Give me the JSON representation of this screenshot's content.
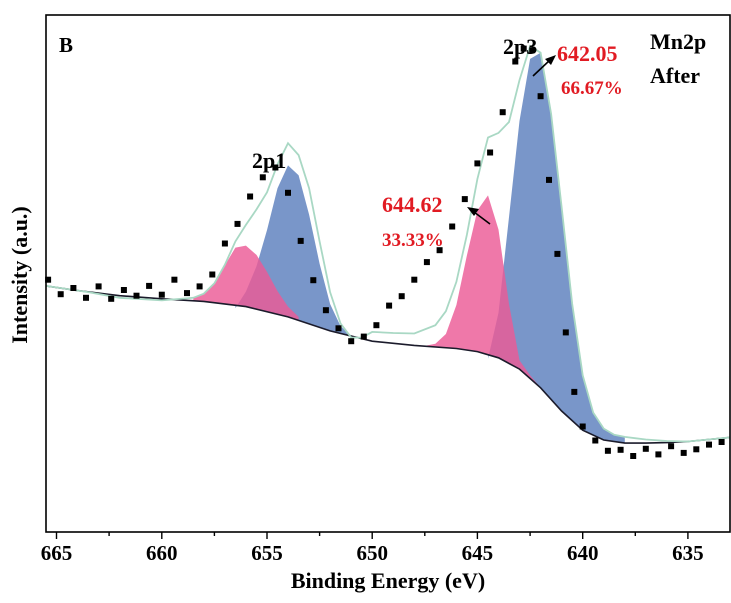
{
  "chart_data": {
    "type": "line",
    "panel_label": "B",
    "xlabel": "Binding Energy (eV)",
    "ylabel": "Intensity (a.u.)",
    "xlim": [
      665.5,
      633
    ],
    "ylim": [
      0,
      100
    ],
    "x_ticks": [
      665,
      660,
      655,
      650,
      645,
      640,
      635
    ],
    "grid": false,
    "legend": "none",
    "colors": {
      "peak_low_be": "#5c7fbd",
      "peak_high_be": "#eb5a96",
      "envelope": "#a9d8c4",
      "background": "#1b1b2b",
      "raw_data": "#000000",
      "annotation": "#e11b23"
    },
    "annotations": {
      "species": "Mn2p",
      "state": "After",
      "peak_2p1": "2p1",
      "peak_2p3": "2p3",
      "p1_energy": "642.05",
      "p1_percent": "66.67%",
      "p2_energy": "644.62",
      "p2_percent": "33.33%"
    },
    "series": [
      {
        "role": "raw-data",
        "x": [
          665.4,
          664.8,
          664.2,
          663.6,
          663.0,
          662.4,
          661.8,
          661.2,
          660.6,
          660.0,
          659.4,
          658.8,
          658.2,
          657.6,
          657.0,
          656.4,
          655.8,
          655.2,
          654.6,
          654.0,
          653.4,
          652.8,
          652.2,
          651.6,
          651.0,
          650.4,
          649.8,
          649.2,
          648.6,
          648.0,
          647.4,
          646.8,
          646.2,
          645.6,
          645.0,
          644.4,
          643.8,
          643.2,
          642.8,
          642.4,
          642.0,
          641.6,
          641.2,
          640.8,
          640.4,
          640.0,
          639.4,
          638.8,
          638.2,
          637.6,
          637.0,
          636.4,
          635.8,
          635.2,
          634.6,
          634.0,
          633.4
        ],
        "y": [
          48.8,
          46.0,
          47.2,
          45.3,
          47.5,
          45.1,
          46.8,
          45.7,
          47.6,
          45.9,
          48.8,
          46.2,
          47.5,
          49.8,
          55.8,
          59.6,
          64.9,
          68.6,
          70.5,
          65.6,
          56.3,
          48.7,
          42.9,
          39.4,
          36.9,
          37.8,
          40.0,
          43.8,
          45.6,
          48.8,
          52.2,
          54.5,
          59.1,
          64.4,
          71.3,
          73.4,
          81.2,
          91.0,
          93.5,
          93.2,
          84.3,
          68.1,
          53.8,
          38.6,
          27.1,
          20.4,
          17.7,
          15.7,
          15.9,
          14.7,
          16.1,
          15.0,
          16.6,
          15.3,
          16.0,
          16.9,
          17.4
        ]
      },
      {
        "role": "envelope",
        "x": [
          665.5,
          663.5,
          662.0,
          660.0,
          658.5,
          658.0,
          657.5,
          657.0,
          656.5,
          656.0,
          655.5,
          655.0,
          654.5,
          654.0,
          653.5,
          653.0,
          652.5,
          652.0,
          651.5,
          651.0,
          650.5,
          650.0,
          649.0,
          648.0,
          647.0,
          646.5,
          646.0,
          645.5,
          645.0,
          644.5,
          644.0,
          643.5,
          643.0,
          642.5,
          642.0,
          641.5,
          641.0,
          640.5,
          640.0,
          639.5,
          639.0,
          638.5,
          638.0,
          637.0,
          636.0,
          635.0,
          633.0
        ],
        "y": [
          47.6,
          46.4,
          45.3,
          44.8,
          45.3,
          46.1,
          48.1,
          51.7,
          56.2,
          59.4,
          62.4,
          65.7,
          71.1,
          75.2,
          72.9,
          66.5,
          56.2,
          46.4,
          40.3,
          37.6,
          37.6,
          38.7,
          38.5,
          38.4,
          40.0,
          42.7,
          48.4,
          57.5,
          68.3,
          76.3,
          77.2,
          79.3,
          87.4,
          94.0,
          92.7,
          80.9,
          62.9,
          44.1,
          30.3,
          23.1,
          20.0,
          18.8,
          18.4,
          17.9,
          17.6,
          17.5,
          18.3
        ]
      },
      {
        "role": "background",
        "x": [
          665.5,
          664.0,
          662.0,
          660.0,
          658.0,
          656.0,
          654.0,
          652.0,
          650.0,
          648.0,
          646.0,
          645.0,
          644.0,
          643.0,
          642.0,
          641.0,
          640.0,
          639.0,
          638.0,
          637.0,
          636.0,
          635.0,
          633.0
        ],
        "y": [
          47.6,
          46.7,
          45.7,
          45.1,
          44.6,
          43.6,
          41.6,
          38.9,
          36.9,
          36.1,
          35.5,
          34.9,
          33.7,
          31.5,
          27.9,
          23.4,
          19.7,
          17.8,
          17.2,
          17.2,
          17.3,
          17.5,
          18.3
        ]
      },
      {
        "role": "fit-peak",
        "center": 642.05,
        "share_percent": 66.67,
        "x": [
          644.5,
          644.0,
          643.5,
          643.0,
          642.5,
          642.0,
          641.5,
          641.0,
          640.5,
          640.0,
          639.5,
          639.0,
          638.5,
          638.0
        ],
        "y": [
          33.5,
          42.4,
          60.9,
          79.5,
          91.5,
          92.7,
          80.9,
          62.9,
          44.1,
          30.3,
          23.1,
          20.0,
          18.8,
          18.4
        ]
      },
      {
        "role": "fit-peak",
        "center": 644.62,
        "share_percent": 33.33,
        "x": [
          647.5,
          647.0,
          646.5,
          646.0,
          645.5,
          645.0,
          644.5,
          644.0,
          643.5,
          643.0,
          642.5,
          642.0,
          641.5,
          641.0,
          640.5
        ],
        "y": [
          36.0,
          36.4,
          38.3,
          43.9,
          53.5,
          62.2,
          65.1,
          58.5,
          44.1,
          33.2,
          30.3,
          27.9,
          25.5,
          23.4,
          21.4
        ]
      },
      {
        "role": "fit-peak",
        "label": "2p1",
        "center": 653.8,
        "x": [
          656.5,
          656.0,
          655.5,
          655.0,
          654.5,
          654.0,
          653.5,
          653.0,
          652.5,
          652.0,
          651.5,
          651.0,
          650.5
        ],
        "y": [
          43.3,
          46.5,
          51.4,
          58.4,
          66.5,
          70.9,
          69.0,
          61.4,
          51.9,
          44.1,
          39.8,
          38.0,
          37.4
        ]
      },
      {
        "role": "fit-peak",
        "center": 656.3,
        "x": [
          658.5,
          658.0,
          657.5,
          657.0,
          656.5,
          656.0,
          655.5,
          655.0,
          654.5,
          654.0,
          653.5
        ],
        "y": [
          45.3,
          46.1,
          48.1,
          51.6,
          55.0,
          55.4,
          53.6,
          50.3,
          46.6,
          43.6,
          41.6
        ]
      }
    ]
  }
}
